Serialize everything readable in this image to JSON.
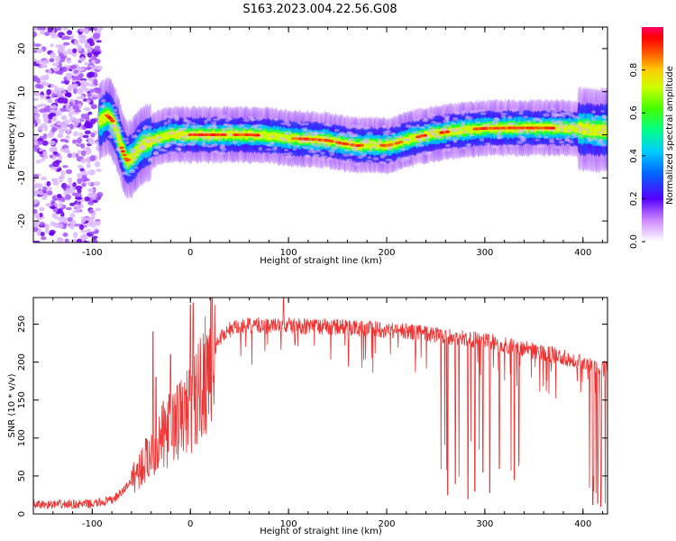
{
  "title": "S163.2023.004.22.56.G08",
  "chart_data": [
    {
      "type": "heatmap",
      "xlabel": "Height of straight line (km)",
      "ylabel": "Frequency (Hz)",
      "xlim": [
        -160,
        425
      ],
      "ylim": [
        -25,
        25
      ],
      "x_ticks": [
        -100,
        0,
        100,
        200,
        300,
        400
      ],
      "y_ticks": [
        -20,
        -10,
        0,
        10,
        20
      ],
      "colorbar": {
        "label": "Normalized spectral amplitude",
        "range": [
          0,
          1
        ],
        "ticks": [
          0.0,
          0.2,
          0.4,
          0.6,
          0.8
        ],
        "tick_labels": [
          "0.0",
          "0.2",
          "0.4",
          "0.6",
          "0.8"
        ]
      },
      "noise_region_x": [
        -160,
        -92
      ],
      "ridge": [
        {
          "x": -92,
          "f": 3.0
        },
        {
          "x": -85,
          "f": 4.5
        },
        {
          "x": -80,
          "f": 3.5
        },
        {
          "x": -75,
          "f": 1.0
        },
        {
          "x": -70,
          "f": -3.0
        },
        {
          "x": -65,
          "f": -6.0
        },
        {
          "x": -60,
          "f": -5.5
        },
        {
          "x": -55,
          "f": -4.0
        },
        {
          "x": -50,
          "f": -2.5
        },
        {
          "x": -40,
          "f": -1.5
        },
        {
          "x": -30,
          "f": -0.5
        },
        {
          "x": -20,
          "f": 0.0
        },
        {
          "x": 0,
          "f": 0.0
        },
        {
          "x": 20,
          "f": 0.0
        },
        {
          "x": 40,
          "f": 0.0
        },
        {
          "x": 60,
          "f": 0.0
        },
        {
          "x": 80,
          "f": -0.2
        },
        {
          "x": 100,
          "f": -0.8
        },
        {
          "x": 120,
          "f": -1.0
        },
        {
          "x": 140,
          "f": -1.3
        },
        {
          "x": 155,
          "f": -2.0
        },
        {
          "x": 170,
          "f": -2.5
        },
        {
          "x": 185,
          "f": -2.3
        },
        {
          "x": 200,
          "f": -2.5
        },
        {
          "x": 210,
          "f": -2.0
        },
        {
          "x": 220,
          "f": -1.2
        },
        {
          "x": 235,
          "f": -0.3
        },
        {
          "x": 250,
          "f": 0.3
        },
        {
          "x": 265,
          "f": 0.8
        },
        {
          "x": 280,
          "f": 1.2
        },
        {
          "x": 300,
          "f": 1.5
        },
        {
          "x": 330,
          "f": 1.6
        },
        {
          "x": 360,
          "f": 1.6
        },
        {
          "x": 390,
          "f": 1.5
        },
        {
          "x": 410,
          "f": 1.2
        },
        {
          "x": 425,
          "f": 1.0
        }
      ]
    },
    {
      "type": "line",
      "xlabel": "Height of straight line (km)",
      "ylabel": "SNR (10 * v/v)",
      "xlim": [
        -160,
        425
      ],
      "ylim": [
        0,
        285
      ],
      "x_ticks": [
        -100,
        0,
        100,
        200,
        300,
        400
      ],
      "y_ticks": [
        0,
        50,
        100,
        150,
        200,
        250
      ],
      "series": [
        {
          "color": "#ee3333",
          "envelope": [
            {
              "x": -160,
              "y": 12
            },
            {
              "x": -100,
              "y": 13
            },
            {
              "x": -80,
              "y": 18
            },
            {
              "x": -70,
              "y": 28
            },
            {
              "x": -60,
              "y": 45
            },
            {
              "x": -50,
              "y": 62
            },
            {
              "x": -40,
              "y": 80
            },
            {
              "x": -30,
              "y": 100
            },
            {
              "x": -20,
              "y": 115
            },
            {
              "x": -10,
              "y": 125
            },
            {
              "x": 0,
              "y": 140
            },
            {
              "x": 10,
              "y": 165
            },
            {
              "x": 20,
              "y": 205
            },
            {
              "x": 30,
              "y": 232
            },
            {
              "x": 40,
              "y": 243
            },
            {
              "x": 60,
              "y": 248
            },
            {
              "x": 100,
              "y": 248
            },
            {
              "x": 150,
              "y": 246
            },
            {
              "x": 200,
              "y": 243
            },
            {
              "x": 250,
              "y": 236
            },
            {
              "x": 300,
              "y": 228
            },
            {
              "x": 350,
              "y": 215
            },
            {
              "x": 400,
              "y": 200
            },
            {
              "x": 425,
              "y": 190
            }
          ],
          "spikes": [
            {
              "x": -38,
              "y": 240
            },
            {
              "x": -35,
              "y": 180
            },
            {
              "x": -20,
              "y": 210
            },
            {
              "x": 0,
              "y": 275
            },
            {
              "x": 3,
              "y": 278
            },
            {
              "x": 95,
              "y": 285
            }
          ],
          "dropouts": [
            {
              "x": 262,
              "y": 25
            },
            {
              "x": 270,
              "y": 40
            },
            {
              "x": 283,
              "y": 20
            },
            {
              "x": 290,
              "y": 30
            },
            {
              "x": 298,
              "y": 55
            },
            {
              "x": 305,
              "y": 28
            },
            {
              "x": 315,
              "y": 60
            },
            {
              "x": 330,
              "y": 45
            },
            {
              "x": 410,
              "y": 12
            },
            {
              "x": 415,
              "y": 14
            },
            {
              "x": 418,
              "y": 10
            }
          ]
        }
      ]
    }
  ]
}
